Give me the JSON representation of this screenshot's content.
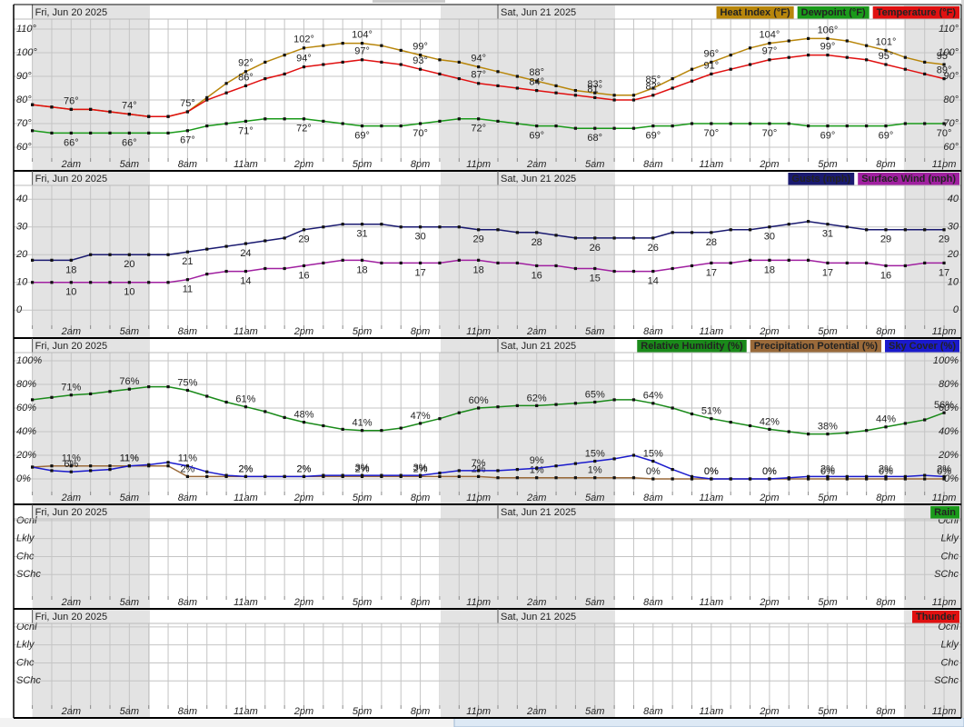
{
  "chart_data": [
    {
      "type": "line",
      "dates": [
        "Fri, Jun 20 2025",
        "Sat, Jun 21 2025"
      ],
      "categories": [
        null,
        null,
        "2am",
        null,
        null,
        "5am",
        null,
        null,
        "8am",
        null,
        null,
        "11am",
        null,
        null,
        "2pm",
        null,
        null,
        "5pm",
        null,
        null,
        "8pm",
        null,
        null,
        "11pm",
        null,
        null,
        "2am",
        null,
        null,
        "5am",
        null,
        null,
        "8am",
        null,
        null,
        "11am",
        null,
        null,
        "2pm",
        null,
        null,
        "5pm",
        null,
        null,
        "8pm",
        null,
        null,
        "11pm"
      ],
      "ylim": [
        55,
        115
      ],
      "yticks": [
        {
          "value": 60,
          "label": "60°"
        },
        {
          "value": 70,
          "label": "70°"
        },
        {
          "value": 80,
          "label": "80°"
        },
        {
          "value": 90,
          "label": "90°"
        },
        {
          "value": 100,
          "label": "100°"
        },
        {
          "value": 110,
          "label": "110°"
        }
      ],
      "grid": true,
      "series": [
        {
          "name": "Heat Index (°F)",
          "color": "#b8860b",
          "values": [
            78,
            77,
            76,
            76,
            75,
            74,
            73,
            73,
            75,
            81,
            87,
            92,
            96,
            99,
            102,
            103,
            104,
            104,
            103,
            101,
            99,
            97,
            96,
            94,
            92,
            90,
            88,
            86,
            84,
            83,
            82,
            82,
            85,
            89,
            93,
            96,
            99,
            102,
            104,
            105,
            106,
            106,
            105,
            103,
            101,
            98,
            96,
            95
          ],
          "value_labels": [
            null,
            null,
            null,
            null,
            null,
            null,
            null,
            null,
            null,
            null,
            null,
            "92°",
            null,
            null,
            "102°",
            null,
            null,
            "104°",
            null,
            null,
            "99°",
            null,
            null,
            "94°",
            null,
            null,
            "88°",
            null,
            null,
            "83°",
            null,
            null,
            "85°",
            null,
            null,
            "96°",
            null,
            null,
            "104°",
            null,
            null,
            "106°",
            null,
            null,
            "101°",
            null,
            null,
            "95°"
          ]
        },
        {
          "name": "Dewpoint (°F)",
          "color": "#1a9a1a",
          "values": [
            67,
            66,
            66,
            66,
            66,
            66,
            66,
            66,
            67,
            69,
            70,
            71,
            72,
            72,
            72,
            71,
            70,
            69,
            69,
            69,
            70,
            71,
            72,
            72,
            71,
            70,
            69,
            69,
            68,
            68,
            68,
            68,
            69,
            69,
            70,
            70,
            70,
            70,
            70,
            70,
            69,
            69,
            69,
            69,
            69,
            70,
            70,
            70
          ],
          "value_labels": [
            null,
            null,
            "66°",
            null,
            null,
            "66°",
            null,
            null,
            "67°",
            null,
            null,
            "71°",
            null,
            null,
            "72°",
            null,
            null,
            "69°",
            null,
            null,
            "70°",
            null,
            null,
            "72°",
            null,
            null,
            "69°",
            null,
            null,
            "68°",
            null,
            null,
            "69°",
            null,
            null,
            "70°",
            null,
            null,
            "70°",
            null,
            null,
            "69°",
            null,
            null,
            "69°",
            null,
            null,
            "70°"
          ]
        },
        {
          "name": "Temperature (°F)",
          "color": "#e01010",
          "values": [
            78,
            77,
            76,
            76,
            75,
            74,
            73,
            73,
            75,
            80,
            83,
            86,
            89,
            91,
            94,
            95,
            96,
            97,
            96,
            95,
            93,
            91,
            89,
            87,
            86,
            85,
            84,
            83,
            82,
            81,
            80,
            80,
            82,
            85,
            88,
            91,
            93,
            95,
            97,
            98,
            99,
            99,
            98,
            97,
            95,
            93,
            91,
            89
          ],
          "value_labels": [
            null,
            null,
            "76°",
            null,
            null,
            "74°",
            null,
            null,
            "75°",
            null,
            null,
            "86°",
            null,
            null,
            "94°",
            null,
            null,
            "97°",
            null,
            null,
            "93°",
            null,
            null,
            "87°",
            null,
            null,
            "84°",
            null,
            null,
            "81°",
            null,
            null,
            "82°",
            null,
            null,
            "91°",
            null,
            null,
            "97°",
            null,
            null,
            "99°",
            null,
            null,
            "95°",
            null,
            null,
            "89°"
          ]
        }
      ]
    },
    {
      "type": "line",
      "dates": [
        "Fri, Jun 20 2025",
        "Sat, Jun 21 2025"
      ],
      "categories": [
        null,
        null,
        "2am",
        null,
        null,
        "5am",
        null,
        null,
        "8am",
        null,
        null,
        "11am",
        null,
        null,
        "2pm",
        null,
        null,
        "5pm",
        null,
        null,
        "8pm",
        null,
        null,
        "11pm",
        null,
        null,
        "2am",
        null,
        null,
        "5am",
        null,
        null,
        "8am",
        null,
        null,
        "11am",
        null,
        null,
        "2pm",
        null,
        null,
        "5pm",
        null,
        null,
        "8pm",
        null,
        null,
        "11pm"
      ],
      "ylim": [
        -5,
        45
      ],
      "yticks": [
        0,
        10,
        20,
        30,
        40
      ],
      "grid": true,
      "series": [
        {
          "name": "Gusts (mph)",
          "color": "#1a1a70",
          "values": [
            18,
            18,
            18,
            20,
            20,
            20,
            20,
            20,
            21,
            22,
            23,
            24,
            25,
            26,
            29,
            30,
            31,
            31,
            31,
            30,
            30,
            30,
            30,
            29,
            29,
            28,
            28,
            27,
            26,
            26,
            26,
            26,
            26,
            28,
            28,
            28,
            29,
            29,
            30,
            31,
            32,
            31,
            30,
            29,
            29,
            29,
            29,
            29
          ]
        },
        {
          "name": "Surface Wind (mph)",
          "color": "#a020a0",
          "values": [
            10,
            10,
            10,
            10,
            10,
            10,
            10,
            10,
            11,
            13,
            14,
            14,
            15,
            15,
            16,
            17,
            18,
            18,
            17,
            17,
            17,
            17,
            18,
            18,
            17,
            17,
            16,
            16,
            15,
            15,
            14,
            14,
            14,
            15,
            16,
            17,
            17,
            18,
            18,
            18,
            18,
            17,
            17,
            17,
            16,
            16,
            17,
            17
          ]
        }
      ]
    },
    {
      "type": "line",
      "dates": [
        "Fri, Jun 20 2025",
        "Sat, Jun 21 2025"
      ],
      "categories": [
        null,
        null,
        "2am",
        null,
        null,
        "5am",
        null,
        null,
        "8am",
        null,
        null,
        "11am",
        null,
        null,
        "2pm",
        null,
        null,
        "5pm",
        null,
        null,
        "8pm",
        null,
        null,
        "11pm",
        null,
        null,
        "2am",
        null,
        null,
        "5am",
        null,
        null,
        "8am",
        null,
        null,
        "11am",
        null,
        null,
        "2pm",
        null,
        null,
        "5pm",
        null,
        null,
        "8pm",
        null,
        null,
        "11pm"
      ],
      "ylim": [
        -5,
        105
      ],
      "yticks": [
        {
          "value": 0,
          "label": "0%"
        },
        {
          "value": 20,
          "label": "20%"
        },
        {
          "value": 40,
          "label": "40%"
        },
        {
          "value": 60,
          "label": "60%"
        },
        {
          "value": 80,
          "label": "80%"
        },
        {
          "value": 100,
          "label": "100%"
        }
      ],
      "grid": true,
      "series": [
        {
          "name": "Relative Humidity (%)",
          "color": "#1a8a1a",
          "values": [
            67,
            69,
            71,
            72,
            74,
            76,
            78,
            78,
            75,
            70,
            65,
            61,
            57,
            52,
            48,
            45,
            42,
            41,
            41,
            43,
            47,
            51,
            56,
            60,
            61,
            62,
            62,
            63,
            64,
            65,
            67,
            67,
            64,
            60,
            55,
            51,
            48,
            45,
            42,
            40,
            38,
            38,
            39,
            41,
            44,
            47,
            50,
            56
          ],
          "value_labels": [
            null,
            null,
            "71%",
            null,
            null,
            "76%",
            null,
            null,
            "75%",
            null,
            null,
            "61%",
            null,
            null,
            "48%",
            null,
            null,
            "41%",
            null,
            null,
            "47%",
            null,
            null,
            "60%",
            null,
            null,
            "62%",
            null,
            null,
            "65%",
            null,
            null,
            "64%",
            null,
            null,
            "51%",
            null,
            null,
            "42%",
            null,
            null,
            "38%",
            null,
            null,
            "44%",
            null,
            null,
            "56%"
          ]
        },
        {
          "name": "Precipitation Potential (%)",
          "color": "#9a6a3a",
          "values": [
            10,
            11,
            11,
            11,
            11,
            11,
            11,
            11,
            2,
            2,
            2,
            2,
            2,
            2,
            2,
            2,
            2,
            2,
            2,
            2,
            2,
            2,
            2,
            2,
            1,
            1,
            1,
            1,
            1,
            1,
            1,
            1,
            0,
            0,
            0,
            0,
            0,
            0,
            0,
            0,
            0,
            0,
            0,
            0,
            0,
            0,
            0,
            0
          ],
          "value_labels": [
            null,
            null,
            "11%",
            null,
            null,
            "11%",
            null,
            null,
            "2%",
            null,
            null,
            "2%",
            null,
            null,
            "2%",
            null,
            null,
            "2%",
            null,
            null,
            "2%",
            null,
            null,
            "2%",
            null,
            null,
            "1%",
            null,
            null,
            "1%",
            null,
            null,
            "0%",
            null,
            null,
            "0%",
            null,
            null,
            "0%",
            null,
            null,
            "0%",
            null,
            null,
            "0%",
            null,
            null,
            "0%"
          ]
        },
        {
          "name": "Sky Cover (%)",
          "color": "#1a1acc",
          "values": [
            10,
            7,
            6,
            7,
            8,
            11,
            12,
            14,
            11,
            6,
            3,
            2,
            2,
            2,
            2,
            3,
            3,
            3,
            3,
            3,
            3,
            5,
            7,
            7,
            7,
            8,
            9,
            11,
            13,
            15,
            17,
            20,
            15,
            8,
            2,
            0,
            0,
            0,
            0,
            1,
            2,
            2,
            2,
            2,
            2,
            2,
            3,
            2
          ],
          "value_labels": [
            null,
            null,
            "6%",
            null,
            null,
            "11%",
            null,
            null,
            "11%",
            null,
            null,
            "2%",
            null,
            null,
            "2%",
            null,
            null,
            "3%",
            null,
            null,
            "3%",
            null,
            null,
            "7%",
            null,
            null,
            "9%",
            null,
            null,
            "15%",
            null,
            null,
            "15%",
            null,
            null,
            "0%",
            null,
            null,
            "0%",
            null,
            null,
            "2%",
            null,
            null,
            "2%",
            null,
            null,
            "2%"
          ]
        }
      ]
    },
    {
      "type": "line",
      "dates": [
        "Fri, Jun 20 2025",
        "Sat, Jun 21 2025"
      ],
      "categories": [
        null,
        null,
        "2am",
        null,
        null,
        "5am",
        null,
        null,
        "8am",
        null,
        null,
        "11am",
        null,
        null,
        "2pm",
        null,
        null,
        "5pm",
        null,
        null,
        "8pm",
        null,
        null,
        "11pm",
        null,
        null,
        "2am",
        null,
        null,
        "5am",
        null,
        null,
        "8am",
        null,
        null,
        "11am",
        null,
        null,
        "2pm",
        null,
        null,
        "5pm",
        null,
        null,
        "8pm",
        null,
        null,
        "11pm"
      ],
      "ylim": [
        0,
        4.5
      ],
      "yticks": [
        {
          "value": 1,
          "label": "SChc"
        },
        {
          "value": 2,
          "label": "Chc"
        },
        {
          "value": 3,
          "label": "Lkly"
        },
        {
          "value": 4,
          "label": "Ocnl"
        }
      ],
      "grid": true,
      "series": [
        {
          "name": "Rain",
          "color": "#1a9a1a"
        }
      ]
    },
    {
      "type": "line",
      "dates": [
        "Fri, Jun 20 2025",
        "Sat, Jun 21 2025"
      ],
      "categories": [
        null,
        null,
        "2am",
        null,
        null,
        "5am",
        null,
        null,
        "8am",
        null,
        null,
        "11am",
        null,
        null,
        "2pm",
        null,
        null,
        "5pm",
        null,
        null,
        "8pm",
        null,
        null,
        "11pm",
        null,
        null,
        "2am",
        null,
        null,
        "5am",
        null,
        null,
        "8am",
        null,
        null,
        "11am",
        null,
        null,
        "2pm",
        null,
        null,
        "5pm",
        null,
        null,
        "8pm",
        null,
        null,
        "11pm"
      ],
      "ylim": [
        0,
        4.5
      ],
      "yticks": [
        {
          "value": 1,
          "label": "SChc"
        },
        {
          "value": 2,
          "label": "Chc"
        },
        {
          "value": 3,
          "label": "Lkly"
        },
        {
          "value": 4,
          "label": "Ocnl"
        }
      ],
      "grid": true,
      "series": [
        {
          "name": "Thunder",
          "color": "#e01010"
        }
      ]
    }
  ]
}
